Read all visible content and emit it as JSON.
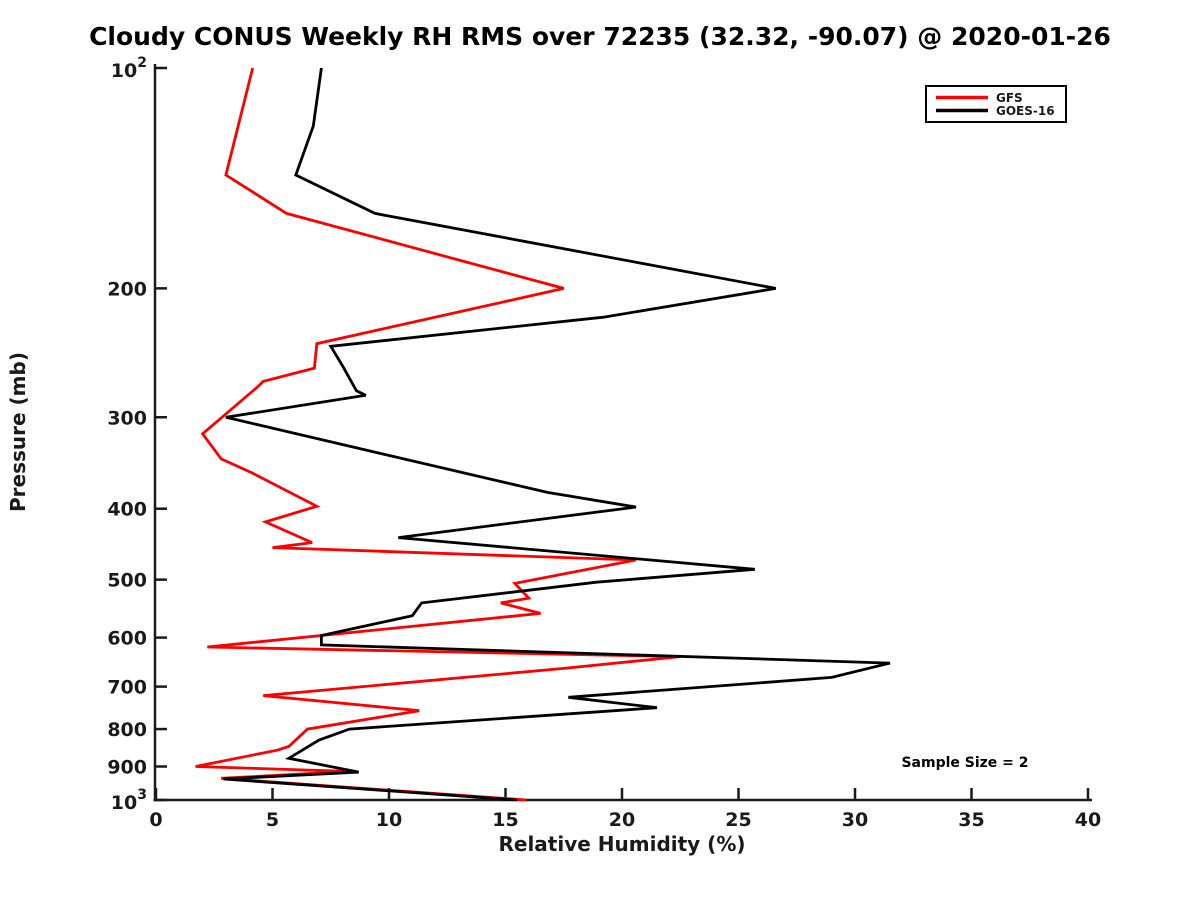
{
  "figure": {
    "background": "#ffffff",
    "axis_color": "#1a1a1a"
  },
  "chart_data": {
    "type": "line",
    "title": "Cloudy CONUS Weekly RH RMS over 72235 (32.32, -90.07) @ 2020-01-26",
    "xlabel": "Relative Humidity (%)",
    "ylabel": "Pressure (mb)",
    "x_axis": {
      "min": 0,
      "max": 40,
      "ticks": [
        0,
        5,
        10,
        15,
        20,
        25,
        30,
        35,
        40
      ]
    },
    "y_axis": {
      "scale": "log",
      "unit": "mb",
      "min": 100,
      "max": 1000,
      "inverted": true,
      "ticks": [
        {
          "value": 100,
          "label": "10",
          "sup": "2"
        },
        {
          "value": 200,
          "label": "200"
        },
        {
          "value": 300,
          "label": "300"
        },
        {
          "value": 400,
          "label": "400"
        },
        {
          "value": 500,
          "label": "500"
        },
        {
          "value": 600,
          "label": "600"
        },
        {
          "value": 700,
          "label": "700"
        },
        {
          "value": 800,
          "label": "800"
        },
        {
          "value": 900,
          "label": "900"
        },
        {
          "value": 1000,
          "label": "10",
          "sup": "3"
        }
      ]
    },
    "grid": false,
    "legend": {
      "position": "top-right",
      "entries": [
        {
          "name": "GFS",
          "color": "#ff0000"
        },
        {
          "name": "GOES-16",
          "color": "#000000"
        }
      ]
    },
    "annotation": {
      "text": "Sample Size = 2",
      "x_rh": 34.7,
      "y_pressure": 890
    },
    "series": [
      {
        "name": "GFS",
        "color": "#ff0000",
        "points_rh_pressure": [
          [
            4.15,
            100
          ],
          [
            3.0,
            140
          ],
          [
            5.6,
            158
          ],
          [
            17.5,
            200
          ],
          [
            6.9,
            238
          ],
          [
            6.8,
            257
          ],
          [
            4.6,
            268
          ],
          [
            4.4,
            272
          ],
          [
            2.0,
            316
          ],
          [
            2.8,
            342
          ],
          [
            4.1,
            357
          ],
          [
            6.9,
            397
          ],
          [
            4.7,
            417
          ],
          [
            6.7,
            445
          ],
          [
            5.0,
            452
          ],
          [
            20.6,
            470
          ],
          [
            15.4,
            506
          ],
          [
            16.0,
            530
          ],
          [
            14.8,
            538
          ],
          [
            16.5,
            556
          ],
          [
            2.2,
            618
          ],
          [
            22.5,
            637
          ],
          [
            17.5,
            661
          ],
          [
            4.6,
            720
          ],
          [
            11.3,
            755
          ],
          [
            6.5,
            800
          ],
          [
            5.7,
            845
          ],
          [
            5.2,
            855
          ],
          [
            1.7,
            900
          ],
          [
            8.3,
            914
          ],
          [
            2.8,
            934
          ],
          [
            15.9,
            1000
          ]
        ]
      },
      {
        "name": "GOES-16",
        "color": "#000000",
        "points_rh_pressure": [
          [
            7.1,
            100
          ],
          [
            6.75,
            120
          ],
          [
            6.0,
            140
          ],
          [
            9.4,
            158
          ],
          [
            26.6,
            200
          ],
          [
            19.2,
            219
          ],
          [
            7.5,
            240
          ],
          [
            8.0,
            255
          ],
          [
            8.6,
            276
          ],
          [
            9.0,
            280
          ],
          [
            3.0,
            300
          ],
          [
            16.8,
            380
          ],
          [
            20.6,
            398
          ],
          [
            10.4,
            438
          ],
          [
            25.7,
            484
          ],
          [
            18.9,
            504
          ],
          [
            11.4,
            538
          ],
          [
            11.0,
            560
          ],
          [
            7.1,
            596
          ],
          [
            7.1,
            614
          ],
          [
            31.5,
            650
          ],
          [
            29.0,
            680
          ],
          [
            17.7,
            724
          ],
          [
            21.5,
            748
          ],
          [
            8.3,
            800
          ],
          [
            7.0,
            828
          ],
          [
            5.7,
            877
          ],
          [
            8.7,
            916
          ],
          [
            2.9,
            936
          ],
          [
            15.5,
            1000
          ]
        ]
      }
    ]
  }
}
